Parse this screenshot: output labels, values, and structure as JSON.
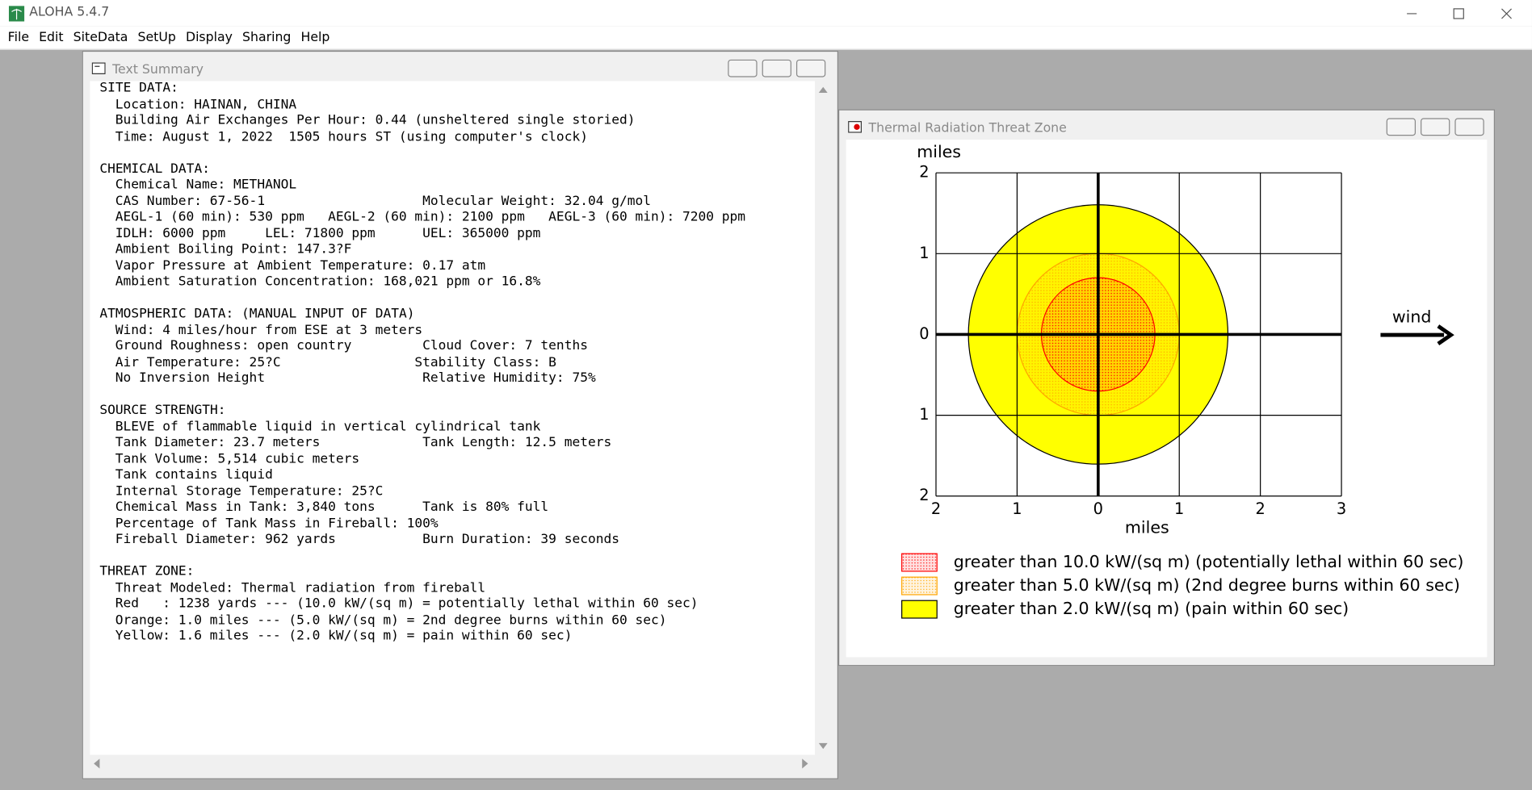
{
  "app": {
    "title": "ALOHA 5.4.7",
    "menu": [
      "File",
      "Edit",
      "SiteData",
      "SetUp",
      "Display",
      "Sharing",
      "Help"
    ]
  },
  "text_summary": {
    "title": "Text Summary",
    "sections": [
      {
        "heading": "SITE DATA:",
        "lines": [
          "Location: HAINAN, CHINA",
          "Building Air Exchanges Per Hour: 0.44 (unsheltered single storied)",
          "Time: August 1, 2022  1505 hours ST (using computer's clock)"
        ]
      },
      {
        "heading": "CHEMICAL DATA:",
        "lines": [
          "Chemical Name: METHANOL",
          "CAS Number: 67-56-1                    Molecular Weight: 32.04 g/mol",
          "AEGL-1 (60 min): 530 ppm   AEGL-2 (60 min): 2100 ppm   AEGL-3 (60 min): 7200 ppm",
          "IDLH: 6000 ppm     LEL: 71800 ppm      UEL: 365000 ppm",
          "Ambient Boiling Point: 147.3?F",
          "Vapor Pressure at Ambient Temperature: 0.17 atm",
          "Ambient Saturation Concentration: 168,021 ppm or 16.8%"
        ]
      },
      {
        "heading": "ATMOSPHERIC DATA: (MANUAL INPUT OF DATA)",
        "lines": [
          "Wind: 4 miles/hour from ESE at 3 meters",
          "Ground Roughness: open country         Cloud Cover: 7 tenths",
          "Air Temperature: 25?C                 Stability Class: B",
          "No Inversion Height                    Relative Humidity: 75%"
        ]
      },
      {
        "heading": "SOURCE STRENGTH:",
        "lines": [
          "BLEVE of flammable liquid in vertical cylindrical tank",
          "Tank Diameter: 23.7 meters             Tank Length: 12.5 meters",
          "Tank Volume: 5,514 cubic meters",
          "Tank contains liquid",
          "Internal Storage Temperature: 25?C",
          "Chemical Mass in Tank: 3,840 tons      Tank is 80% full",
          "Percentage of Tank Mass in Fireball: 100%",
          "Fireball Diameter: 962 yards           Burn Duration: 39 seconds"
        ]
      },
      {
        "heading": "THREAT ZONE:",
        "lines": [
          "Threat Modeled: Thermal radiation from fireball",
          "Red   : 1238 yards --- (10.0 kW/(sq m) = potentially lethal within 60 sec)",
          "Orange: 1.0 miles --- (5.0 kW/(sq m) = 2nd degree burns within 60 sec)",
          "Yellow: 1.6 miles --- (2.0 kW/(sq m) = pain within 60 sec)"
        ]
      }
    ]
  },
  "threat_window": {
    "title": "Thermal Radiation Threat Zone"
  },
  "chart_data": {
    "type": "zones",
    "x_label": "miles",
    "y_label": "miles",
    "annotation": "wind",
    "xlim": [
      -2,
      3
    ],
    "ylim": [
      -2,
      2
    ],
    "grid": true,
    "xticks": [
      {
        "value": -2,
        "label": "2"
      },
      {
        "value": -1,
        "label": "1"
      },
      0,
      1,
      2,
      3
    ],
    "yticks": [
      {
        "value": -2,
        "label": "2"
      },
      {
        "value": -1,
        "label": "1"
      },
      0,
      1,
      2
    ],
    "zones": [
      {
        "name": "greater than 10.0 kW/(sq m) (potentially lethal within 60 sec)",
        "color": "#ff0000",
        "fill": "dots",
        "radius": 0.7
      },
      {
        "name": "greater than 5.0 kW/(sq m) (2nd degree burns within 60 sec)",
        "color": "#ffa500",
        "fill": "dots",
        "radius": 1.0
      },
      {
        "name": "greater than 2.0 kW/(sq m) (pain within 60 sec)",
        "color": "#ffff00",
        "fill": "solid",
        "radius": 1.6
      }
    ]
  }
}
